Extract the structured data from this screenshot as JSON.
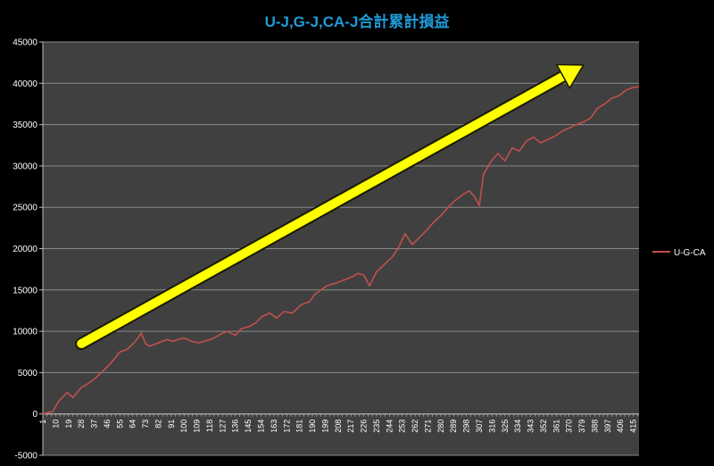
{
  "chart_data": {
    "type": "line",
    "title": "U-J,G-J,CA-J合計累計損益",
    "xlabel": "",
    "ylabel": "",
    "ylim": [
      -5000,
      45000
    ],
    "y_ticks": [
      -5000,
      0,
      5000,
      10000,
      15000,
      20000,
      25000,
      30000,
      35000,
      40000,
      45000
    ],
    "x_range": [
      1,
      419
    ],
    "x_tick_labels": [
      "1",
      "10",
      "19",
      "28",
      "37",
      "46",
      "55",
      "64",
      "73",
      "82",
      "91",
      "100",
      "109",
      "118",
      "127",
      "136",
      "145",
      "154",
      "163",
      "172",
      "181",
      "190",
      "199",
      "208",
      "217",
      "226",
      "235",
      "244",
      "253",
      "262",
      "271",
      "280",
      "289",
      "298",
      "307",
      "316",
      "325",
      "334",
      "343",
      "352",
      "361",
      "370",
      "379",
      "388",
      "397",
      "406",
      "415"
    ],
    "grid": true,
    "legend_position": "right",
    "series": [
      {
        "name": "U-G-CA",
        "color": "#c0504d",
        "x": [
          1,
          8,
          12,
          18,
          22,
          28,
          32,
          37,
          42,
          48,
          55,
          60,
          66,
          70,
          73,
          76,
          82,
          88,
          92,
          100,
          105,
          110,
          116,
          120,
          125,
          130,
          136,
          140,
          146,
          150,
          155,
          160,
          165,
          170,
          176,
          182,
          188,
          192,
          196,
          200,
          206,
          212,
          218,
          222,
          226,
          230,
          235,
          240,
          246,
          250,
          255,
          260,
          266,
          270,
          274,
          280,
          285,
          290,
          296,
          300,
          304,
          307,
          310,
          315,
          320,
          325,
          330,
          335,
          340,
          345,
          350,
          355,
          360,
          365,
          370,
          375,
          380,
          385,
          390,
          395,
          400,
          405,
          410,
          415,
          419
        ],
        "y": [
          0,
          300,
          1500,
          2600,
          2000,
          3200,
          3600,
          4200,
          5000,
          6000,
          7500,
          7800,
          8800,
          9800,
          8500,
          8200,
          8600,
          9000,
          8800,
          9200,
          8800,
          8600,
          8900,
          9100,
          9600,
          10000,
          9500,
          10300,
          10600,
          11000,
          11800,
          12200,
          11600,
          12400,
          12200,
          13200,
          13600,
          14500,
          15000,
          15500,
          15800,
          16200,
          16600,
          17000,
          16800,
          15500,
          17200,
          18000,
          19000,
          20000,
          21800,
          20500,
          21500,
          22200,
          23000,
          24000,
          25000,
          25800,
          26600,
          27000,
          26200,
          25200,
          29000,
          30500,
          31500,
          30600,
          32200,
          31800,
          33000,
          33500,
          32800,
          33200,
          33600,
          34200,
          34600,
          35000,
          35300,
          35800,
          37000,
          37500,
          38200,
          38500,
          39200,
          39500,
          39600
        ]
      }
    ],
    "annotation": {
      "type": "arrow",
      "color": "#ffff00",
      "from": [
        28,
        8500
      ],
      "to": [
        380,
        42200
      ]
    }
  }
}
